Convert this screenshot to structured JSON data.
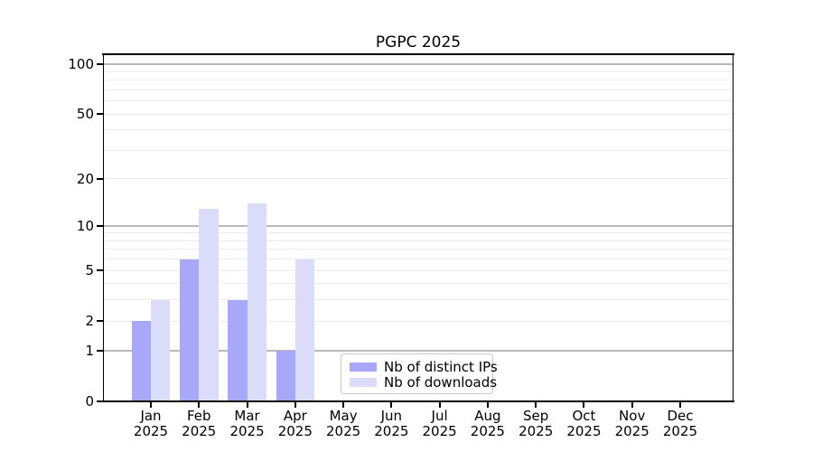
{
  "chart_data": {
    "type": "bar",
    "title": "PGPC 2025",
    "categories": [
      "Jan",
      "Feb",
      "Mar",
      "Apr",
      "May",
      "Jun",
      "Jul",
      "Aug",
      "Sep",
      "Oct",
      "Nov",
      "Dec"
    ],
    "x_tick_second_line": "2025",
    "series": [
      {
        "name": "Nb of distinct IPs",
        "color": "#a8a8fa",
        "values": [
          2,
          6,
          3,
          1,
          0,
          0,
          0,
          0,
          0,
          0,
          0,
          0
        ]
      },
      {
        "name": "Nb of downloads",
        "color": "#dbdbfa",
        "values": [
          3,
          13,
          14,
          6,
          0,
          0,
          0,
          0,
          0,
          0,
          0,
          0
        ]
      }
    ],
    "y_axis": {
      "scale": "log10(value+1)",
      "tick_labels": [
        0,
        1,
        2,
        5,
        10,
        20,
        50,
        100
      ],
      "major_gridlines": [
        1,
        10,
        100
      ],
      "minor_gridlines": [
        2,
        3,
        4,
        5,
        6,
        7,
        8,
        9,
        20,
        30,
        40,
        50,
        60,
        70,
        80,
        90
      ],
      "range_max": 115
    },
    "legend": {
      "position": "lower center"
    },
    "grid": true
  },
  "colors": {
    "bar_distinct_ips": "#a8a8fa",
    "bar_downloads": "#dbdbfa",
    "major_grid": "#b9b9b9",
    "minor_grid": "#ececec",
    "axis_spine": "#000000",
    "legend_border": "#c9c9c9",
    "background": "#ffffff"
  }
}
